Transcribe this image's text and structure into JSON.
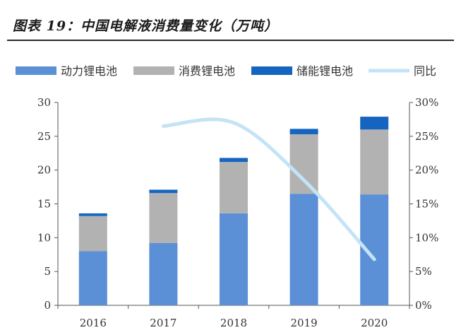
{
  "title": "图表 19：中国电解液消费量变化（万吨）",
  "chart_data": {
    "type": "bar",
    "stacked": true,
    "categories": [
      "2016",
      "2017",
      "2018",
      "2019",
      "2020"
    ],
    "series": [
      {
        "name": "动力锂电池",
        "values": [
          8.0,
          9.2,
          13.6,
          16.5,
          16.4
        ],
        "color": "#5b8fd6"
      },
      {
        "name": "消费锂电池",
        "values": [
          5.2,
          7.4,
          7.6,
          8.8,
          9.6
        ],
        "color": "#b2b2b2"
      },
      {
        "name": "储能锂电池",
        "values": [
          0.4,
          0.5,
          0.6,
          0.8,
          1.9
        ],
        "color": "#1565c0"
      }
    ],
    "line_series": {
      "name": "同比",
      "axis": "right",
      "categories": [
        "2017",
        "2018",
        "2019",
        "2020"
      ],
      "values": [
        26.5,
        27.0,
        18.5,
        6.8
      ],
      "color": "#c4e3f7"
    },
    "y_left": {
      "min": 0,
      "max": 30,
      "ticks": [
        "0",
        "5",
        "10",
        "15",
        "20",
        "25",
        "30"
      ]
    },
    "y_right": {
      "min": 0,
      "max": 30,
      "ticks": [
        "0%",
        "5%",
        "10%",
        "15%",
        "20%",
        "25%",
        "30%"
      ]
    },
    "legend_position": "top",
    "grid": false
  }
}
